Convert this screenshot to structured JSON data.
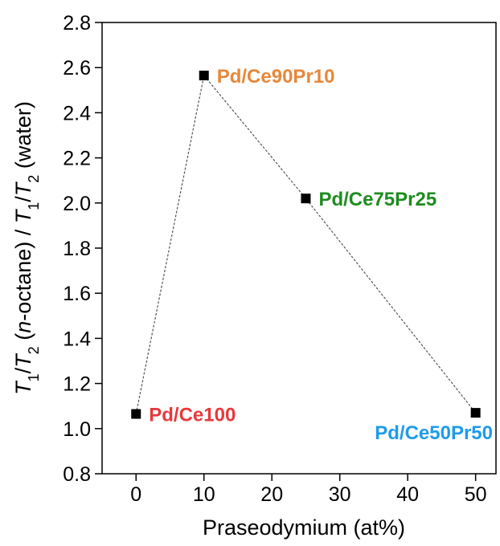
{
  "chart_data": {
    "type": "scatter",
    "x_label": "Praseodymium (at%)",
    "y_label_parts": [
      "T",
      "1",
      "/",
      "T",
      "2",
      " (",
      "n",
      "-octane) / ",
      "T",
      "1",
      "/",
      "T",
      "2",
      " (water)"
    ],
    "x": [
      0,
      10,
      25,
      50
    ],
    "series": [
      {
        "values": [
          1.065,
          2.565,
          2.02,
          1.07
        ],
        "color": "#000000",
        "labels": [
          "Pd/Ce100",
          "Pd/Ce90Pr10",
          "Pd/Ce75Pr25",
          "Pd/Ce50Pr50"
        ],
        "label_colors": [
          "#e8383d",
          "#e8873a",
          "#1e8c1e",
          "#1e9be8"
        ]
      }
    ],
    "xlim": [
      -5,
      53
    ],
    "xticks": [
      0,
      10,
      20,
      30,
      40,
      50
    ],
    "ylim": [
      0.8,
      2.8
    ],
    "yticks": [
      0.8,
      {
        "value": 1.0,
        "label": "1.0"
      },
      1.2,
      1.4,
      1.6,
      1.8,
      {
        "value": 2.0,
        "label": "2.0"
      },
      2.2,
      2.4,
      2.6,
      2.8
    ],
    "line": "dotted"
  }
}
